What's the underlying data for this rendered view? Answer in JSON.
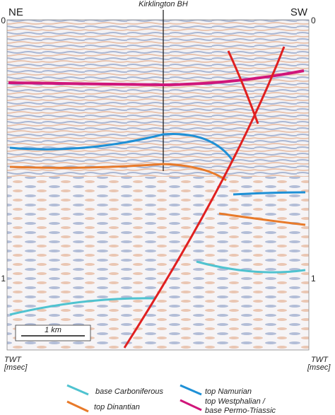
{
  "section": {
    "left_label": "NE",
    "right_label": "SW",
    "well": "Kirklington BH",
    "left_ticks": [
      "0",
      "1"
    ],
    "right_ticks": [
      "0",
      "1"
    ],
    "scale": "1 km",
    "axis_title_left": [
      "TWT",
      "[msec]"
    ],
    "axis_title_right": [
      "TWT",
      "[msec]"
    ]
  },
  "legend": {
    "items": [
      {
        "label": "base Carboniferous"
      },
      {
        "label": "top Namurian"
      },
      {
        "label": "top Dinantian"
      },
      {
        "label": [
          "top Westphalian /",
          "base Permo-Triassic"
        ]
      }
    ]
  }
}
